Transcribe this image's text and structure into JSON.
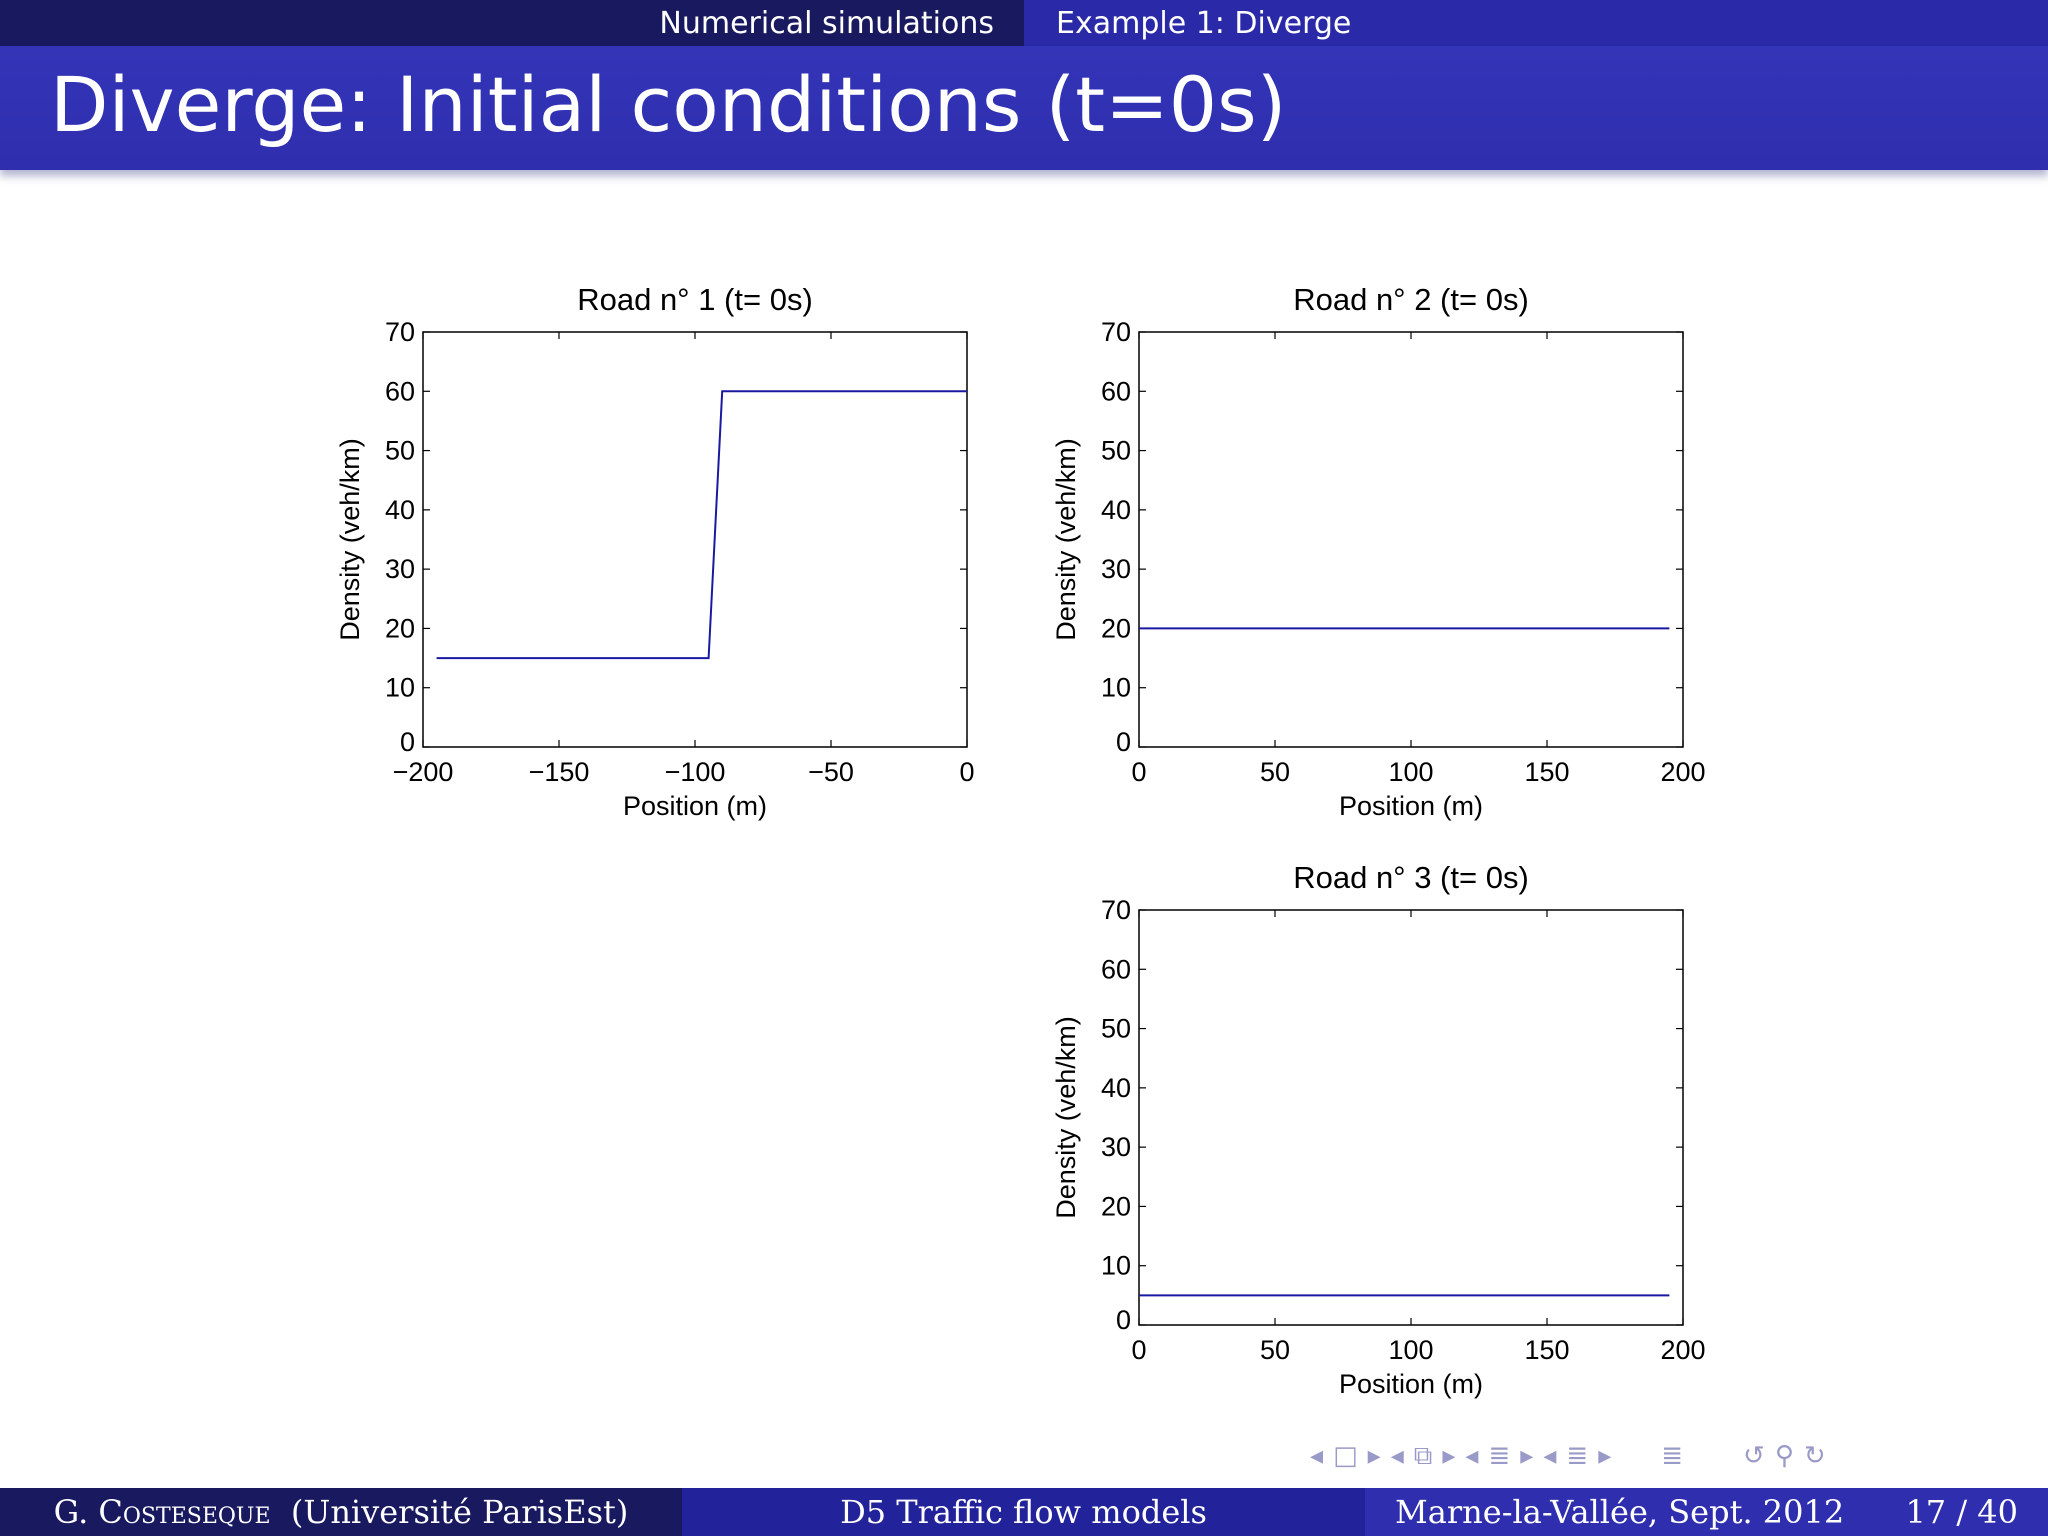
{
  "header": {
    "section": "Numerical simulations",
    "subsection": "Example 1: Diverge"
  },
  "slide": {
    "title": "Diverge: Initial conditions (t=0s)"
  },
  "footer": {
    "author_initial": "G.",
    "author_name": "Costeseque",
    "affiliation": "(Université ParisEst)",
    "talk": "D5 Traffic flow models",
    "venue": "Marne-la-Vallée, Sept. 2012",
    "page": "17 / 40"
  },
  "colors": {
    "series": "#1a1aa0",
    "bar_dark": "#191960",
    "bar_mid": "#2a2aa8"
  },
  "chart_data": [
    {
      "type": "line",
      "title": "Road n° 1 (t= 0s)",
      "xlabel": "Position (m)",
      "ylabel": "Density (veh/km)",
      "xlim": [
        -200,
        0
      ],
      "ylim": [
        0,
        70
      ],
      "xticks": [
        -200,
        -150,
        -100,
        -50,
        0
      ],
      "xtick_labels": [
        "−200",
        "−150",
        "−100",
        "−50",
        "0"
      ],
      "yticks": [
        0,
        10,
        20,
        30,
        40,
        50,
        60,
        70
      ],
      "ytick_labels": [
        "0",
        "10",
        "20",
        "30",
        "40",
        "50",
        "60",
        "70"
      ],
      "x": [
        -195,
        -95,
        -90,
        0
      ],
      "y": [
        15,
        15,
        60,
        60
      ]
    },
    {
      "type": "line",
      "title": "Road n° 2 (t= 0s)",
      "xlabel": "Position (m)",
      "ylabel": "Density (veh/km)",
      "xlim": [
        0,
        200
      ],
      "ylim": [
        0,
        70
      ],
      "xticks": [
        0,
        50,
        100,
        150,
        200
      ],
      "xtick_labels": [
        "0",
        "50",
        "100",
        "150",
        "200"
      ],
      "yticks": [
        0,
        10,
        20,
        30,
        40,
        50,
        60,
        70
      ],
      "ytick_labels": [
        "0",
        "10",
        "20",
        "30",
        "40",
        "50",
        "60",
        "70"
      ],
      "x": [
        0,
        195
      ],
      "y": [
        20,
        20
      ]
    },
    {
      "type": "line",
      "title": "Road n° 3 (t= 0s)",
      "xlabel": "Position (m)",
      "ylabel": "Density (veh/km)",
      "xlim": [
        0,
        200
      ],
      "ylim": [
        0,
        70
      ],
      "xticks": [
        0,
        50,
        100,
        150,
        200
      ],
      "xtick_labels": [
        "0",
        "50",
        "100",
        "150",
        "200"
      ],
      "yticks": [
        0,
        10,
        20,
        30,
        40,
        50,
        60,
        70
      ],
      "ytick_labels": [
        "0",
        "10",
        "20",
        "30",
        "40",
        "50",
        "60",
        "70"
      ],
      "x": [
        0,
        195
      ],
      "y": [
        5,
        5
      ]
    }
  ]
}
